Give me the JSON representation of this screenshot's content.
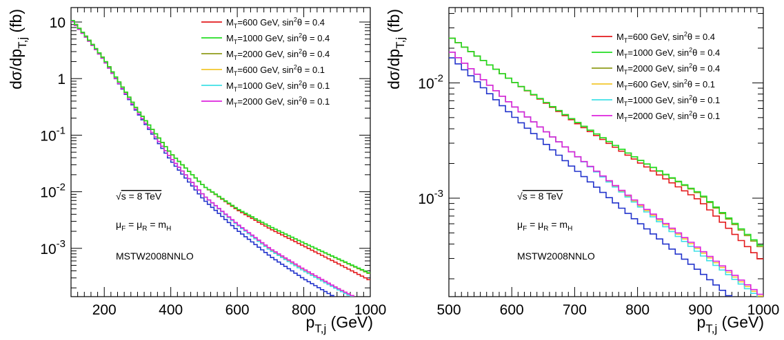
{
  "chart_data": [
    {
      "type": "line",
      "step": true,
      "ylabel": "dσ/dp_{T,j} (fb)",
      "xlabel": "p_{T,j} (GeV)",
      "xlim": [
        100,
        1000
      ],
      "ylim": [
        0.00014,
        18
      ],
      "yscale": "log",
      "xticks": [
        200,
        400,
        600,
        800,
        1000
      ],
      "yticks": [
        {
          "value": 10,
          "base": "10",
          "exp": ""
        },
        {
          "value": 1,
          "base": "1",
          "exp": ""
        },
        {
          "value": 0.1,
          "base": "10",
          "exp": "-1"
        },
        {
          "value": 0.01,
          "base": "10",
          "exp": "-2"
        },
        {
          "value": 0.001,
          "base": "10",
          "exp": "-3"
        }
      ],
      "legend_position": "top-right",
      "series": [
        {
          "name": "M_T=600 GeV, sin^2θ = 0.4",
          "color": "#e31a1c",
          "points": [
            [
              100,
              11.5
            ],
            [
              150,
              5.2
            ],
            [
              200,
              2.2
            ],
            [
              300,
              0.28
            ],
            [
              400,
              0.048
            ],
            [
              500,
              0.0125
            ],
            [
              600,
              0.0048
            ],
            [
              700,
              0.0022
            ],
            [
              800,
              0.0011
            ],
            [
              900,
              0.00055
            ],
            [
              1000,
              0.00027
            ]
          ]
        },
        {
          "name": "M_T=1000 GeV, sin^2θ = 0.4",
          "color": "#22dd22",
          "points": [
            [
              100,
              11.5
            ],
            [
              150,
              5.2
            ],
            [
              200,
              2.2
            ],
            [
              300,
              0.28
            ],
            [
              400,
              0.048
            ],
            [
              500,
              0.0125
            ],
            [
              600,
              0.005
            ],
            [
              700,
              0.0024
            ],
            [
              800,
              0.00125
            ],
            [
              900,
              0.00067
            ],
            [
              1000,
              0.00036
            ]
          ]
        },
        {
          "name": "M_T=2000 GeV, sin^2θ = 0.4",
          "color": "#8f9c1a",
          "points": [
            [
              100,
              11.5
            ],
            [
              150,
              5.2
            ],
            [
              200,
              2.2
            ],
            [
              300,
              0.28
            ],
            [
              400,
              0.048
            ],
            [
              500,
              0.0125
            ],
            [
              600,
              0.005
            ],
            [
              700,
              0.0024
            ],
            [
              800,
              0.00125
            ],
            [
              900,
              0.00066
            ],
            [
              1000,
              0.00035
            ]
          ]
        },
        {
          "name": "M_T=600 GeV, sin^2θ = 0.1",
          "color": "#f2c72b",
          "points": [
            [
              100,
              11.0
            ],
            [
              150,
              5.0
            ],
            [
              200,
              2.1
            ],
            [
              300,
              0.26
            ],
            [
              400,
              0.04
            ],
            [
              500,
              0.0085
            ],
            [
              600,
              0.0026
            ],
            [
              700,
              0.00095
            ],
            [
              800,
              0.00042
            ],
            [
              900,
              0.0002
            ],
            [
              1000,
              0.0001
            ]
          ]
        },
        {
          "name": "M_T=1000 GeV, sin^2θ = 0.1",
          "color": "#3ee0e6",
          "points": [
            [
              100,
              11.0
            ],
            [
              150,
              5.0
            ],
            [
              200,
              2.1
            ],
            [
              300,
              0.26
            ],
            [
              400,
              0.04
            ],
            [
              500,
              0.0085
            ],
            [
              600,
              0.0026
            ],
            [
              700,
              0.00092
            ],
            [
              800,
              0.0004
            ],
            [
              900,
              0.00019
            ],
            [
              1000,
              9.5e-05
            ]
          ]
        },
        {
          "name": "M_T=2000 GeV, sin^2θ = 0.1",
          "color": "#dd22dd",
          "points": [
            [
              100,
              11.0
            ],
            [
              150,
              5.0
            ],
            [
              200,
              2.1
            ],
            [
              300,
              0.26
            ],
            [
              400,
              0.04
            ],
            [
              500,
              0.0085
            ],
            [
              600,
              0.0027
            ],
            [
              700,
              0.00098
            ],
            [
              800,
              0.00043
            ],
            [
              900,
              0.0002
            ],
            [
              1000,
              0.0001
            ]
          ]
        },
        {
          "name": "",
          "color": "#2233cc",
          "points": [
            [
              100,
              11.0
            ],
            [
              150,
              5.0
            ],
            [
              200,
              2.1
            ],
            [
              300,
              0.25
            ],
            [
              400,
              0.036
            ],
            [
              500,
              0.0072
            ],
            [
              600,
              0.0021
            ],
            [
              700,
              0.00072
            ],
            [
              800,
              0.00029
            ],
            [
              900,
              0.00013
            ],
            [
              1000,
              6e-05
            ]
          ]
        }
      ],
      "annotations": [
        "√s = 8 TeV",
        "μ_F = μ_R = m_H",
        "MSTW2008NNLO"
      ]
    },
    {
      "type": "line",
      "step": true,
      "ylabel": "dσ/dp_{T,j} (fb)",
      "xlabel": "p_{T,j} (GeV)",
      "xlim": [
        500,
        1000
      ],
      "ylim": [
        0.00014,
        0.045
      ],
      "yscale": "log",
      "xticks": [
        500,
        600,
        700,
        800,
        900,
        1000
      ],
      "yticks": [
        {
          "value": 0.01,
          "base": "10",
          "exp": "-2"
        },
        {
          "value": 0.001,
          "base": "10",
          "exp": "-3"
        }
      ],
      "legend_position": "top-right",
      "series": [
        {
          "name": "M_T=600 GeV, sin^2θ = 0.4",
          "color": "#e31a1c",
          "points": [
            [
              500,
              0.0255
            ],
            [
              600,
              0.0105
            ],
            [
              700,
              0.0046
            ],
            [
              800,
              0.0021
            ],
            [
              900,
              0.00095
            ],
            [
              1000,
              0.00028
            ]
          ]
        },
        {
          "name": "M_T=1000 GeV, sin^2θ = 0.4",
          "color": "#22dd22",
          "points": [
            [
              500,
              0.0255
            ],
            [
              600,
              0.0105
            ],
            [
              700,
              0.0047
            ],
            [
              800,
              0.0022
            ],
            [
              900,
              0.0011
            ],
            [
              1000,
              0.00037
            ]
          ]
        },
        {
          "name": "M_T=2000 GeV, sin^2θ = 0.4",
          "color": "#8f9c1a",
          "points": [
            [
              500,
              0.0255
            ],
            [
              600,
              0.0105
            ],
            [
              700,
              0.0047
            ],
            [
              800,
              0.0022
            ],
            [
              900,
              0.00108
            ],
            [
              1000,
              0.00036
            ]
          ]
        },
        {
          "name": "M_T=600 GeV, sin^2θ = 0.1",
          "color": "#f2c72b",
          "points": [
            [
              500,
              0.0195
            ],
            [
              600,
              0.0065
            ],
            [
              700,
              0.0024
            ],
            [
              800,
              0.0009
            ],
            [
              900,
              0.00035
            ],
            [
              1000,
              0.000135
            ]
          ]
        },
        {
          "name": "M_T=1000 GeV, sin^2θ = 0.1",
          "color": "#3ee0e6",
          "points": [
            [
              500,
              0.0195
            ],
            [
              600,
              0.0065
            ],
            [
              700,
              0.0024
            ],
            [
              800,
              0.00088
            ],
            [
              900,
              0.00033
            ],
            [
              1000,
              0.00013
            ]
          ]
        },
        {
          "name": "M_T=2000 GeV, sin^2θ = 0.1",
          "color": "#dd22dd",
          "points": [
            [
              500,
              0.0195
            ],
            [
              600,
              0.0065
            ],
            [
              700,
              0.0024
            ],
            [
              800,
              0.00092
            ],
            [
              900,
              0.00036
            ],
            [
              1000,
              0.00014
            ]
          ]
        },
        {
          "name": "",
          "color": "#2233cc",
          "points": [
            [
              500,
              0.0175
            ],
            [
              600,
              0.0053
            ],
            [
              700,
              0.0018
            ],
            [
              800,
              0.00063
            ],
            [
              900,
              0.00023
            ],
            [
              1000,
              8e-05
            ]
          ]
        }
      ],
      "annotations": [
        "√s = 8 TeV",
        "μ_F = μ_R = m_H",
        "MSTW2008NNLO"
      ]
    }
  ]
}
